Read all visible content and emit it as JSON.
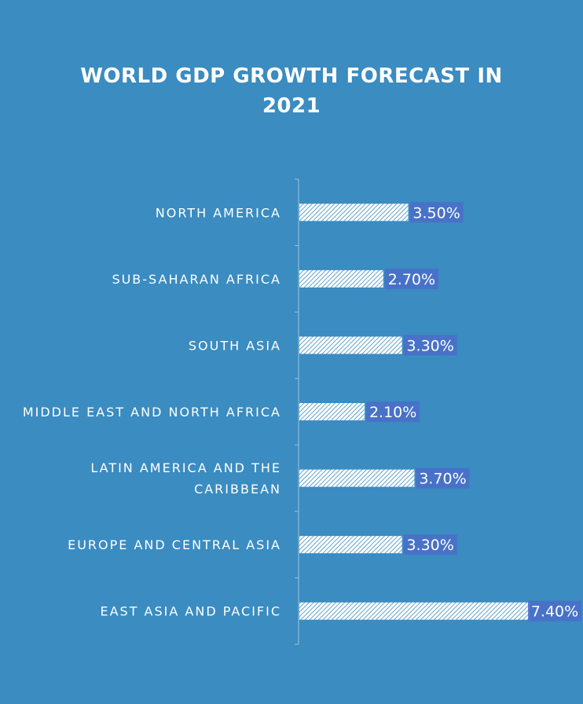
{
  "chart_data": {
    "type": "bar",
    "orientation": "horizontal",
    "title_lines": [
      "WORLD GDP GROWTH FORECAST IN",
      "2021"
    ],
    "categories": [
      "NORTH AMERICA",
      "SUB-SAHARAN AFRICA",
      "SOUTH ASIA",
      "MIDDLE EAST AND NORTH AFRICA",
      "LATIN AMERICA AND THE CARIBBEAN",
      "EUROPE AND CENTRAL ASIA",
      "EAST ASIA AND PACIFIC"
    ],
    "values": [
      3.5,
      2.7,
      3.3,
      2.1,
      3.7,
      3.3,
      7.4
    ],
    "data_labels": [
      "3.50%",
      "2.70%",
      "3.30%",
      "2.10%",
      "3.70%",
      "3.30%",
      "7.40%"
    ],
    "value_unit": "%",
    "xlim": [
      0,
      8
    ],
    "grid": false,
    "legend": "none",
    "colors": {
      "background": "#3a8cc1",
      "bar_fill": "#ffffff",
      "bar_hatch": "#3a8cc1",
      "label_box": "#4a6fc9",
      "text": "#ffffff",
      "axis": "#9cc4e0"
    }
  }
}
